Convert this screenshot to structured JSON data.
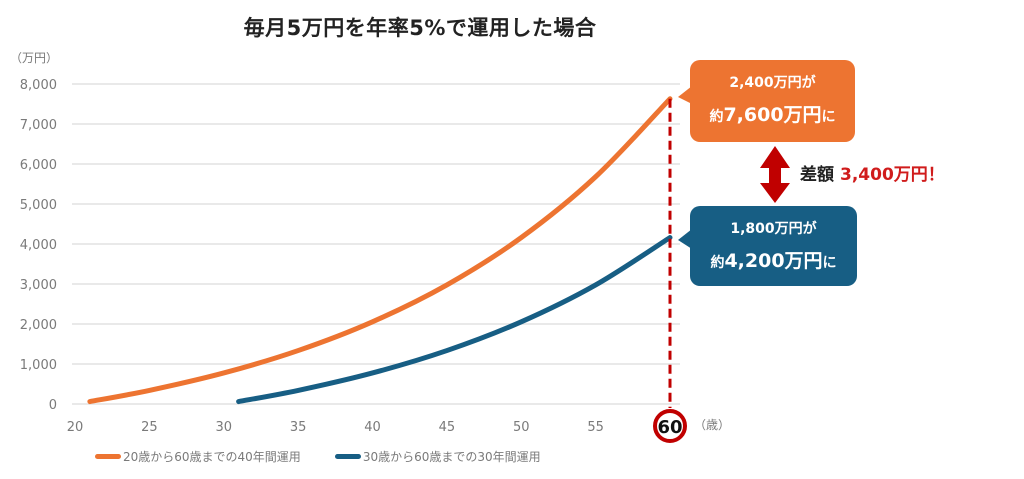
{
  "title": "毎月5万円を年率5%で運用した場合",
  "y_unit": "（万円）",
  "x_unit": "（歳）",
  "highlight_age": "60",
  "colors": {
    "series_40yr": "#ED7431",
    "series_30yr": "#175E84",
    "grid": "#e2e2e2",
    "marker_red": "#C00000",
    "diff_text": "#d01c1c"
  },
  "legend": [
    {
      "label": "20歳から60歳までの40年間運用",
      "color": "#ED7431"
    },
    {
      "label": "30歳から60歳までの30年間運用",
      "color": "#175E84"
    }
  ],
  "callouts": {
    "top": {
      "line1": "2,400万円が",
      "line2_prefix": "約",
      "line2_amount": "7,600万円",
      "line2_suffix": "に"
    },
    "bottom": {
      "line1": "1,800万円が",
      "line2_prefix": "約",
      "line2_amount": "4,200万円",
      "line2_suffix": "に"
    }
  },
  "difference": {
    "label": "差額",
    "amount": "3,400万円！"
  },
  "chart_data": {
    "type": "line",
    "title": "毎月5万円を年率5%で運用した場合",
    "xlabel": "（歳）",
    "ylabel": "（万円）",
    "xlim": [
      20,
      60
    ],
    "ylim": [
      0,
      8000
    ],
    "x_ticks": [
      20,
      25,
      30,
      35,
      40,
      45,
      50,
      55,
      60
    ],
    "y_ticks": [
      0,
      1000,
      2000,
      3000,
      4000,
      5000,
      6000,
      7000,
      8000
    ],
    "y_tick_labels": [
      "0",
      "1,000",
      "2,000",
      "3,000",
      "4,000",
      "5,000",
      "6,000",
      "7,000",
      "8,000"
    ],
    "grid": true,
    "legend_position": "bottom",
    "series": [
      {
        "name": "20歳から60歳までの40年間運用",
        "x": [
          21,
          25,
          30,
          35,
          40,
          45,
          50,
          55,
          60
        ],
        "values": [
          61,
          340,
          776,
          1336,
          2055,
          2977,
          4161,
          5681,
          7630
        ]
      },
      {
        "name": "30歳から60歳までの30年間運用",
        "x": [
          31,
          35,
          40,
          45,
          50,
          55,
          60
        ],
        "values": [
          61,
          340,
          776,
          1336,
          2055,
          2977,
          4161
        ]
      }
    ],
    "annotations": [
      "2,400万円が 約7,600万円に",
      "1,800万円が 約4,200万円に",
      "差額 3,400万円！"
    ]
  }
}
